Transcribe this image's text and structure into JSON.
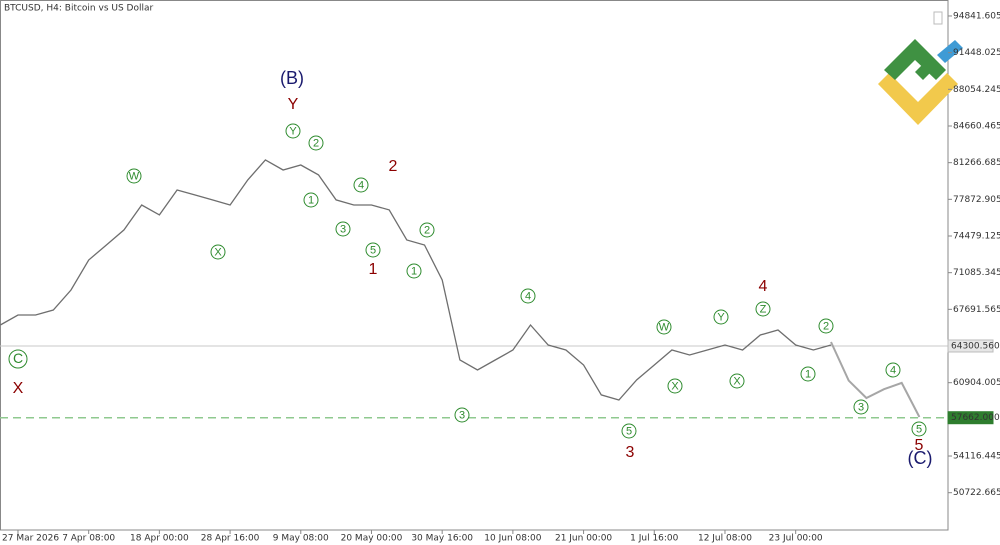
{
  "chart_data": {
    "type": "line",
    "title": "BTCUSD, H4:  Bitcoin vs US Dollar",
    "categories": [
      null,
      "27 Mar 2026",
      null,
      null,
      null,
      "7 Apr 08:00",
      null,
      null,
      null,
      "18 Apr 00:00",
      null,
      null,
      null,
      "28 Apr 16:00",
      null,
      null,
      null,
      "9 May 08:00",
      null,
      null,
      null,
      "20 May 00:00",
      null,
      null,
      null,
      "30 May 16:00",
      null,
      null,
      null,
      "10 Jun 08:00",
      null,
      null,
      null,
      "21 Jun 00:00",
      null,
      null,
      null,
      "1 Jul 16:00",
      null,
      null,
      null,
      "12 Jul 08:00",
      null,
      null,
      null,
      "23 Jul 00:00",
      null,
      null,
      null,
      null,
      null,
      null,
      null
    ],
    "series": [
      {
        "color": "#6e6e6e",
        "values": [
          66240,
          67170,
          67170,
          67630,
          69480,
          72260,
          73650,
          75040,
          77350,
          76430,
          78740,
          78280,
          77820,
          77350,
          79670,
          81520,
          80590,
          81050,
          80130,
          77820,
          77350,
          77350,
          76890,
          74110,
          73650,
          70410,
          63000,
          62080,
          63000,
          63930,
          66240,
          64390,
          63930,
          62540,
          59770,
          59300,
          61150,
          62540,
          63930,
          63470,
          63930,
          64390,
          63930,
          65320,
          65780,
          64390,
          63930,
          64390,
          null,
          null,
          null,
          null,
          null
        ]
      },
      {
        "color": "#a6a6a6",
        "values": [
          null,
          null,
          null,
          null,
          null,
          null,
          null,
          null,
          null,
          null,
          null,
          null,
          null,
          null,
          null,
          null,
          null,
          null,
          null,
          null,
          null,
          null,
          null,
          null,
          null,
          null,
          null,
          null,
          null,
          null,
          null,
          null,
          null,
          null,
          null,
          null,
          null,
          null,
          null,
          null,
          null,
          null,
          null,
          null,
          null,
          null,
          null,
          64670,
          61100,
          59490,
          60300,
          60880,
          57730
        ]
      }
    ],
    "ylim": [
      47270,
      96320
    ],
    "yticks": [
      94841.605,
      91448.025,
      88054.245,
      84660.465,
      81266.685,
      77872.905,
      74479.125,
      71085.345,
      67691.565,
      60904.005,
      54116.445,
      50722.665
    ],
    "levels": [
      {
        "value": 64300.56,
        "label": "64300.560",
        "color": "#c8c8c8",
        "dashed": false
      },
      {
        "value": 57662,
        "label": "57662.000",
        "color": "#8fc98f",
        "dashed": true
      }
    ],
    "annotations": [
      {
        "text": "C",
        "style": "circled"
      },
      {
        "text": "X",
        "style": "red"
      },
      {
        "text": "W",
        "style": "circled"
      },
      {
        "text": "X",
        "style": "circled"
      },
      {
        "text": "(B)",
        "style": "navy"
      },
      {
        "text": "Y",
        "style": "red"
      },
      {
        "text": "Y",
        "style": "circled"
      },
      {
        "text": "2",
        "style": "circled"
      },
      {
        "text": "1",
        "style": "circled"
      },
      {
        "text": "3",
        "style": "circled"
      },
      {
        "text": "4",
        "style": "circled"
      },
      {
        "text": "5",
        "style": "circled"
      },
      {
        "text": "1",
        "style": "red"
      },
      {
        "text": "2",
        "style": "red"
      },
      {
        "text": "2",
        "style": "circled"
      },
      {
        "text": "1",
        "style": "circled"
      },
      {
        "text": "4",
        "style": "circled"
      },
      {
        "text": "3",
        "style": "circled"
      },
      {
        "text": "5",
        "style": "circled"
      },
      {
        "text": "3",
        "style": "red"
      },
      {
        "text": "W",
        "style": "circled"
      },
      {
        "text": "X",
        "style": "circled"
      },
      {
        "text": "Y",
        "style": "circled"
      },
      {
        "text": "X",
        "style": "circled"
      },
      {
        "text": "Z",
        "style": "circled"
      },
      {
        "text": "4",
        "style": "red"
      },
      {
        "text": "2",
        "style": "circled"
      },
      {
        "text": "1",
        "style": "circled"
      },
      {
        "text": "3",
        "style": "circled"
      },
      {
        "text": "4",
        "style": "circled"
      },
      {
        "text": "5",
        "style": "circled"
      },
      {
        "text": "5",
        "style": "red"
      },
      {
        "text": "(C)",
        "style": "navy"
      }
    ]
  }
}
